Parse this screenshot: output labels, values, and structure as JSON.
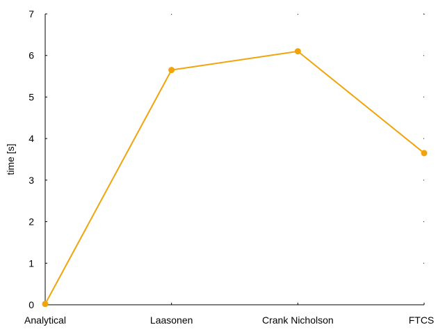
{
  "chart_data": {
    "type": "line",
    "title": "",
    "xlabel": "",
    "ylabel": "time [s]",
    "categories": [
      "Analytical",
      "Laasonen",
      "Crank Nicholson",
      "FTCS"
    ],
    "series": [
      {
        "values": [
          0.02,
          5.65,
          6.1,
          3.65
        ],
        "color": "#f0a30a"
      }
    ],
    "ylim": [
      0,
      7
    ],
    "yticks": [
      0,
      1,
      2,
      3,
      4,
      5,
      6,
      7
    ],
    "ytick_labels": [
      "0",
      "1",
      "2",
      "3",
      "4",
      "5",
      "6",
      "7"
    ],
    "grid": false,
    "legend": "none"
  }
}
